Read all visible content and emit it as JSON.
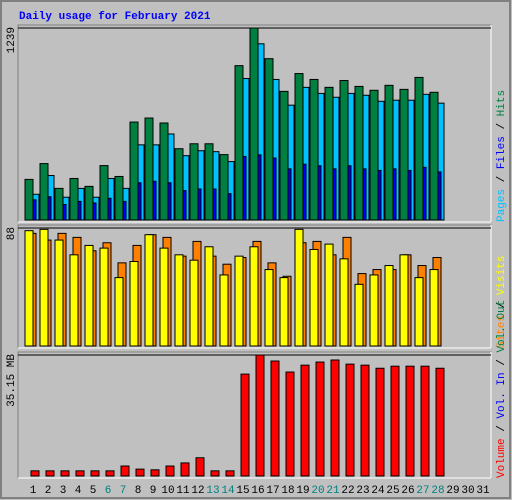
{
  "title": "Daily usage for February 2021",
  "chart_data": [
    {
      "type": "bar",
      "legend_separator": " / ",
      "ylim": [
        0,
        1239
      ],
      "yticks": [
        1239
      ],
      "series": [
        {
          "name": "Pages",
          "color": "#00c0ff",
          "values": [
            166,
            287,
            147,
            204,
            147,
            268,
            204,
            485,
            485,
            555,
            415,
            447,
            441,
            377,
            913,
            1137,
            907,
            741,
            856,
            817,
            792,
            817,
            805,
            766,
            773,
            773,
            811,
            754,
            null,
            null,
            null
          ]
        },
        {
          "name": "Files",
          "color": "#0000ff",
          "values": [
            130,
            150,
            100,
            120,
            110,
            140,
            120,
            240,
            250,
            240,
            190,
            200,
            200,
            170,
            410,
            420,
            400,
            330,
            360,
            350,
            330,
            350,
            330,
            320,
            330,
            320,
            340,
            310,
            null,
            null,
            null
          ]
        },
        {
          "name": "Hits",
          "color": "#008040",
          "values": [
            262,
            364,
            204,
            268,
            217,
            351,
            281,
            632,
            658,
            626,
            460,
            492,
            492,
            422,
            996,
            1239,
            1041,
            830,
            945,
            907,
            856,
            900,
            862,
            837,
            869,
            843,
            920,
            824,
            null,
            null,
            null
          ]
        }
      ]
    },
    {
      "type": "bar",
      "legend_separator": " / ",
      "ylim": [
        0,
        88
      ],
      "yticks": [
        88
      ],
      "series": [
        {
          "name": "Sites",
          "color": "#ff8000",
          "values": [
            84,
            79,
            84,
            81,
            71,
            77,
            62,
            75,
            83,
            81,
            67,
            78,
            67,
            61,
            66,
            78,
            62,
            52,
            77,
            78,
            68,
            81,
            54,
            57,
            57,
            68,
            60,
            66,
            null,
            null,
            null
          ]
        },
        {
          "name": "Visits",
          "color": "#ffff00",
          "values": [
            86,
            87,
            79,
            68,
            75,
            73,
            51,
            63,
            83,
            73,
            68,
            64,
            74,
            53,
            67,
            74,
            57,
            51,
            87,
            72,
            76,
            65,
            46,
            53,
            60,
            68,
            51,
            57,
            null,
            null,
            null
          ]
        }
      ]
    },
    {
      "type": "bar",
      "legend_separator": " / ",
      "ylim": [
        0,
        35.15
      ],
      "yticks": [
        {
          "value": 35.15,
          "label": "35.15 MB"
        }
      ],
      "categories": [
        "1",
        "2",
        "3",
        "4",
        "5",
        "6",
        "7",
        "8",
        "9",
        "10",
        "11",
        "12",
        "13",
        "14",
        "15",
        "16",
        "17",
        "18",
        "19",
        "20",
        "21",
        "22",
        "23",
        "24",
        "25",
        "26",
        "27",
        "28",
        "29",
        "30",
        "31"
      ],
      "category_colors": [
        "#000000",
        "#000000",
        "#000000",
        "#000000",
        "#000000",
        "#008080",
        "#008080",
        "#000000",
        "#000000",
        "#000000",
        "#000000",
        "#000000",
        "#008080",
        "#008080",
        "#000000",
        "#000000",
        "#000000",
        "#000000",
        "#000000",
        "#008080",
        "#008080",
        "#000000",
        "#000000",
        "#000000",
        "#000000",
        "#000000",
        "#008080",
        "#008080",
        "#000000",
        "#000000",
        "#000000"
      ],
      "series": [
        {
          "name": "Volume",
          "color": "#ff0000",
          "values": [
            1.5,
            1.5,
            1.5,
            1.5,
            1.5,
            1.5,
            2.9,
            2.0,
            1.8,
            2.9,
            3.8,
            5.3,
            1.5,
            1.5,
            29.6,
            35.15,
            33.4,
            30.2,
            32.2,
            33.1,
            33.7,
            32.5,
            32.2,
            31.3,
            31.9,
            31.9,
            31.9,
            31.3,
            null,
            null,
            null
          ]
        },
        {
          "name": "Vol. In",
          "color": "#0000ff",
          "values": [
            0,
            0,
            0,
            0,
            0,
            0,
            0,
            0,
            0,
            0,
            0,
            0,
            0,
            0,
            0,
            0,
            0,
            0,
            0,
            0,
            0,
            0,
            0,
            0,
            0,
            0,
            0,
            0,
            null,
            null,
            null
          ]
        },
        {
          "name": "Vol. Out",
          "color": "#008040",
          "values": [
            0,
            0,
            0,
            0,
            0,
            0,
            0,
            0,
            0,
            0,
            0,
            0,
            0,
            0,
            0,
            0,
            0,
            0,
            0,
            0,
            0,
            0,
            0,
            0,
            0,
            0,
            0,
            0,
            null,
            null,
            null
          ]
        }
      ]
    }
  ]
}
